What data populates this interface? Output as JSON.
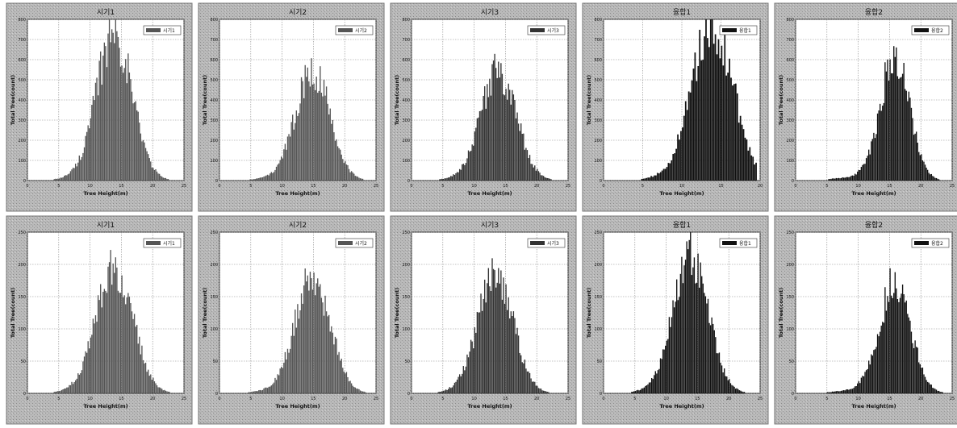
{
  "chart_data": [
    {
      "type": "bar",
      "title": "시기1",
      "legend": "시기1",
      "bar_color": "#555555",
      "xlabel": "Tree Height(m)",
      "ylabel": "Total Tree(count)",
      "xlim": [
        0,
        25
      ],
      "ylim": [
        0,
        800
      ],
      "xticks": [
        0,
        5,
        10,
        15,
        20,
        25
      ],
      "yticks": [
        0,
        100,
        200,
        300,
        400,
        500,
        600,
        700,
        800
      ],
      "grid": true,
      "mean": 14,
      "sd": 2.8,
      "peak": 720
    },
    {
      "type": "bar",
      "title": "시기2",
      "legend": "시기2",
      "bar_color": "#555555",
      "xlabel": "Tree Height(m)",
      "ylabel": "Total Tree(count)",
      "xlim": [
        0,
        25
      ],
      "ylim": [
        0,
        800
      ],
      "xticks": [
        0,
        5,
        10,
        15,
        20,
        25
      ],
      "yticks": [
        0,
        100,
        200,
        300,
        400,
        500,
        600,
        700,
        800
      ],
      "grid": true,
      "mean": 15,
      "sd": 2.7,
      "peak": 540
    },
    {
      "type": "bar",
      "title": "시기3",
      "legend": "시기3",
      "bar_color": "#333333",
      "xlabel": "Tree Height(m)",
      "ylabel": "Total Tree(count)",
      "xlim": [
        0,
        25
      ],
      "ylim": [
        0,
        800
      ],
      "xticks": [
        0,
        5,
        10,
        15,
        20,
        25
      ],
      "yticks": [
        0,
        100,
        200,
        300,
        400,
        500,
        600,
        700,
        800
      ],
      "grid": true,
      "mean": 14,
      "sd": 2.8,
      "peak": 530
    },
    {
      "type": "bar",
      "title": "융합1",
      "legend": "융합1",
      "bar_color": "#111111",
      "xlabel": "Tree Height(m)",
      "ylabel": "Total Tree(count)",
      "xlim": [
        0,
        20
      ],
      "ylim": [
        0,
        800
      ],
      "xticks": [
        0,
        5,
        10,
        15,
        20
      ],
      "yticks": [
        0,
        100,
        200,
        300,
        400,
        500,
        600,
        700,
        800
      ],
      "grid": true,
      "mean": 14,
      "sd": 2.6,
      "peak": 760
    },
    {
      "type": "bar",
      "title": "융합2",
      "legend": "융합2",
      "bar_color": "#111111",
      "xlabel": "Tree Height(m)",
      "ylabel": "Total Tree(count)",
      "xlim": [
        0,
        25
      ],
      "ylim": [
        0,
        800
      ],
      "xticks": [
        0,
        5,
        10,
        15,
        20,
        25
      ],
      "yticks": [
        0,
        100,
        200,
        300,
        400,
        500,
        600,
        700,
        800
      ],
      "grid": true,
      "mean": 16,
      "sd": 2.3,
      "peak": 610
    },
    {
      "type": "bar",
      "title": "시기1",
      "legend": "시기1",
      "bar_color": "#555555",
      "xlabel": "Tree Height(m)",
      "ylabel": "Total Tree(count)",
      "xlim": [
        0,
        25
      ],
      "ylim": [
        0,
        250
      ],
      "xticks": [
        0,
        5,
        10,
        15,
        20,
        25
      ],
      "yticks": [
        0,
        50,
        100,
        150,
        200,
        250
      ],
      "grid": true,
      "mean": 14,
      "sd": 2.9,
      "peak": 190
    },
    {
      "type": "bar",
      "title": "시기2",
      "legend": "시기2",
      "bar_color": "#555555",
      "xlabel": "Tree Height(m)",
      "ylabel": "Total Tree(count)",
      "xlim": [
        0,
        25
      ],
      "ylim": [
        0,
        250
      ],
      "xticks": [
        0,
        5,
        10,
        15,
        20,
        25
      ],
      "yticks": [
        0,
        50,
        100,
        150,
        200,
        250
      ],
      "grid": true,
      "mean": 15,
      "sd": 2.8,
      "peak": 175
    },
    {
      "type": "bar",
      "title": "시기3",
      "legend": "시기3",
      "bar_color": "#333333",
      "xlabel": "Tree Height(m)",
      "ylabel": "Total Tree(count)",
      "xlim": [
        0,
        25
      ],
      "ylim": [
        0,
        250
      ],
      "xticks": [
        0,
        5,
        10,
        15,
        20,
        25
      ],
      "yticks": [
        0,
        50,
        100,
        150,
        200,
        250
      ],
      "grid": true,
      "mean": 13.5,
      "sd": 2.8,
      "peak": 180
    },
    {
      "type": "bar",
      "title": "융합1",
      "legend": "융합1",
      "bar_color": "#111111",
      "xlabel": "Tree Height(m)",
      "ylabel": "Total Tree(count)",
      "xlim": [
        0,
        25
      ],
      "ylim": [
        0,
        250
      ],
      "xticks": [
        0,
        5,
        10,
        15,
        20,
        25
      ],
      "yticks": [
        0,
        50,
        100,
        150,
        200,
        250
      ],
      "grid": true,
      "mean": 14,
      "sd": 2.8,
      "peak": 205
    },
    {
      "type": "bar",
      "title": "융합2",
      "legend": "융합2",
      "bar_color": "#111111",
      "xlabel": "Tree Height(m)",
      "ylabel": "Total Tree(count)",
      "xlim": [
        0,
        25
      ],
      "ylim": [
        0,
        250
      ],
      "xticks": [
        0,
        5,
        10,
        15,
        20,
        25
      ],
      "yticks": [
        0,
        50,
        100,
        150,
        200,
        250
      ],
      "grid": true,
      "mean": 16,
      "sd": 2.5,
      "peak": 165
    }
  ]
}
